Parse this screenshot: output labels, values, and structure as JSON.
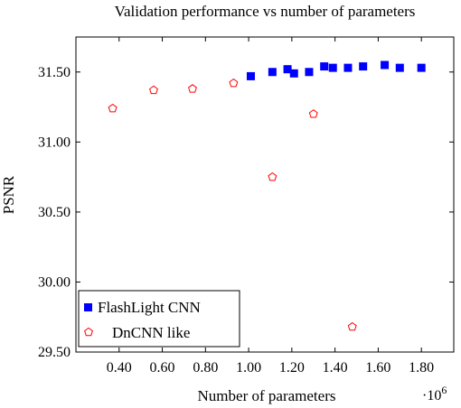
{
  "chart_data": {
    "type": "scatter",
    "title": "Validation performance vs number of parameters",
    "xlabel": "Number of parameters",
    "ylabel": "PSNR",
    "x_multiplier": "·10",
    "x_multiplier_exp": "6",
    "xlim": [
      0.2,
      1.95
    ],
    "ylim": [
      29.5,
      31.75
    ],
    "xticks": [
      0.4,
      0.6,
      0.8,
      1.0,
      1.2,
      1.4,
      1.6,
      1.8
    ],
    "xtick_labels": [
      "0.40",
      "0.60",
      "0.80",
      "1.00",
      "1.20",
      "1.40",
      "1.60",
      "1.80"
    ],
    "yticks": [
      29.5,
      30.0,
      30.5,
      31.0,
      31.5
    ],
    "ytick_labels": [
      "29.50",
      "30.00",
      "30.50",
      "31.00",
      "31.50"
    ],
    "grid": false,
    "legend_position": "bottom-left",
    "series": [
      {
        "name": "FlashLight CNN",
        "marker": "square",
        "color": "#0000ff",
        "points": [
          [
            1.01,
            31.47
          ],
          [
            1.11,
            31.5
          ],
          [
            1.18,
            31.52
          ],
          [
            1.21,
            31.49
          ],
          [
            1.28,
            31.5
          ],
          [
            1.35,
            31.54
          ],
          [
            1.39,
            31.53
          ],
          [
            1.46,
            31.53
          ],
          [
            1.53,
            31.54
          ],
          [
            1.63,
            31.55
          ],
          [
            1.7,
            31.53
          ],
          [
            1.8,
            31.53
          ]
        ]
      },
      {
        "name": "DnCNN like",
        "marker": "pentagon",
        "color": "#ff0000",
        "points": [
          [
            0.37,
            31.24
          ],
          [
            0.56,
            31.37
          ],
          [
            0.74,
            31.38
          ],
          [
            0.93,
            31.42
          ],
          [
            1.11,
            30.75
          ],
          [
            1.3,
            31.2
          ],
          [
            1.48,
            29.68
          ]
        ]
      }
    ]
  }
}
